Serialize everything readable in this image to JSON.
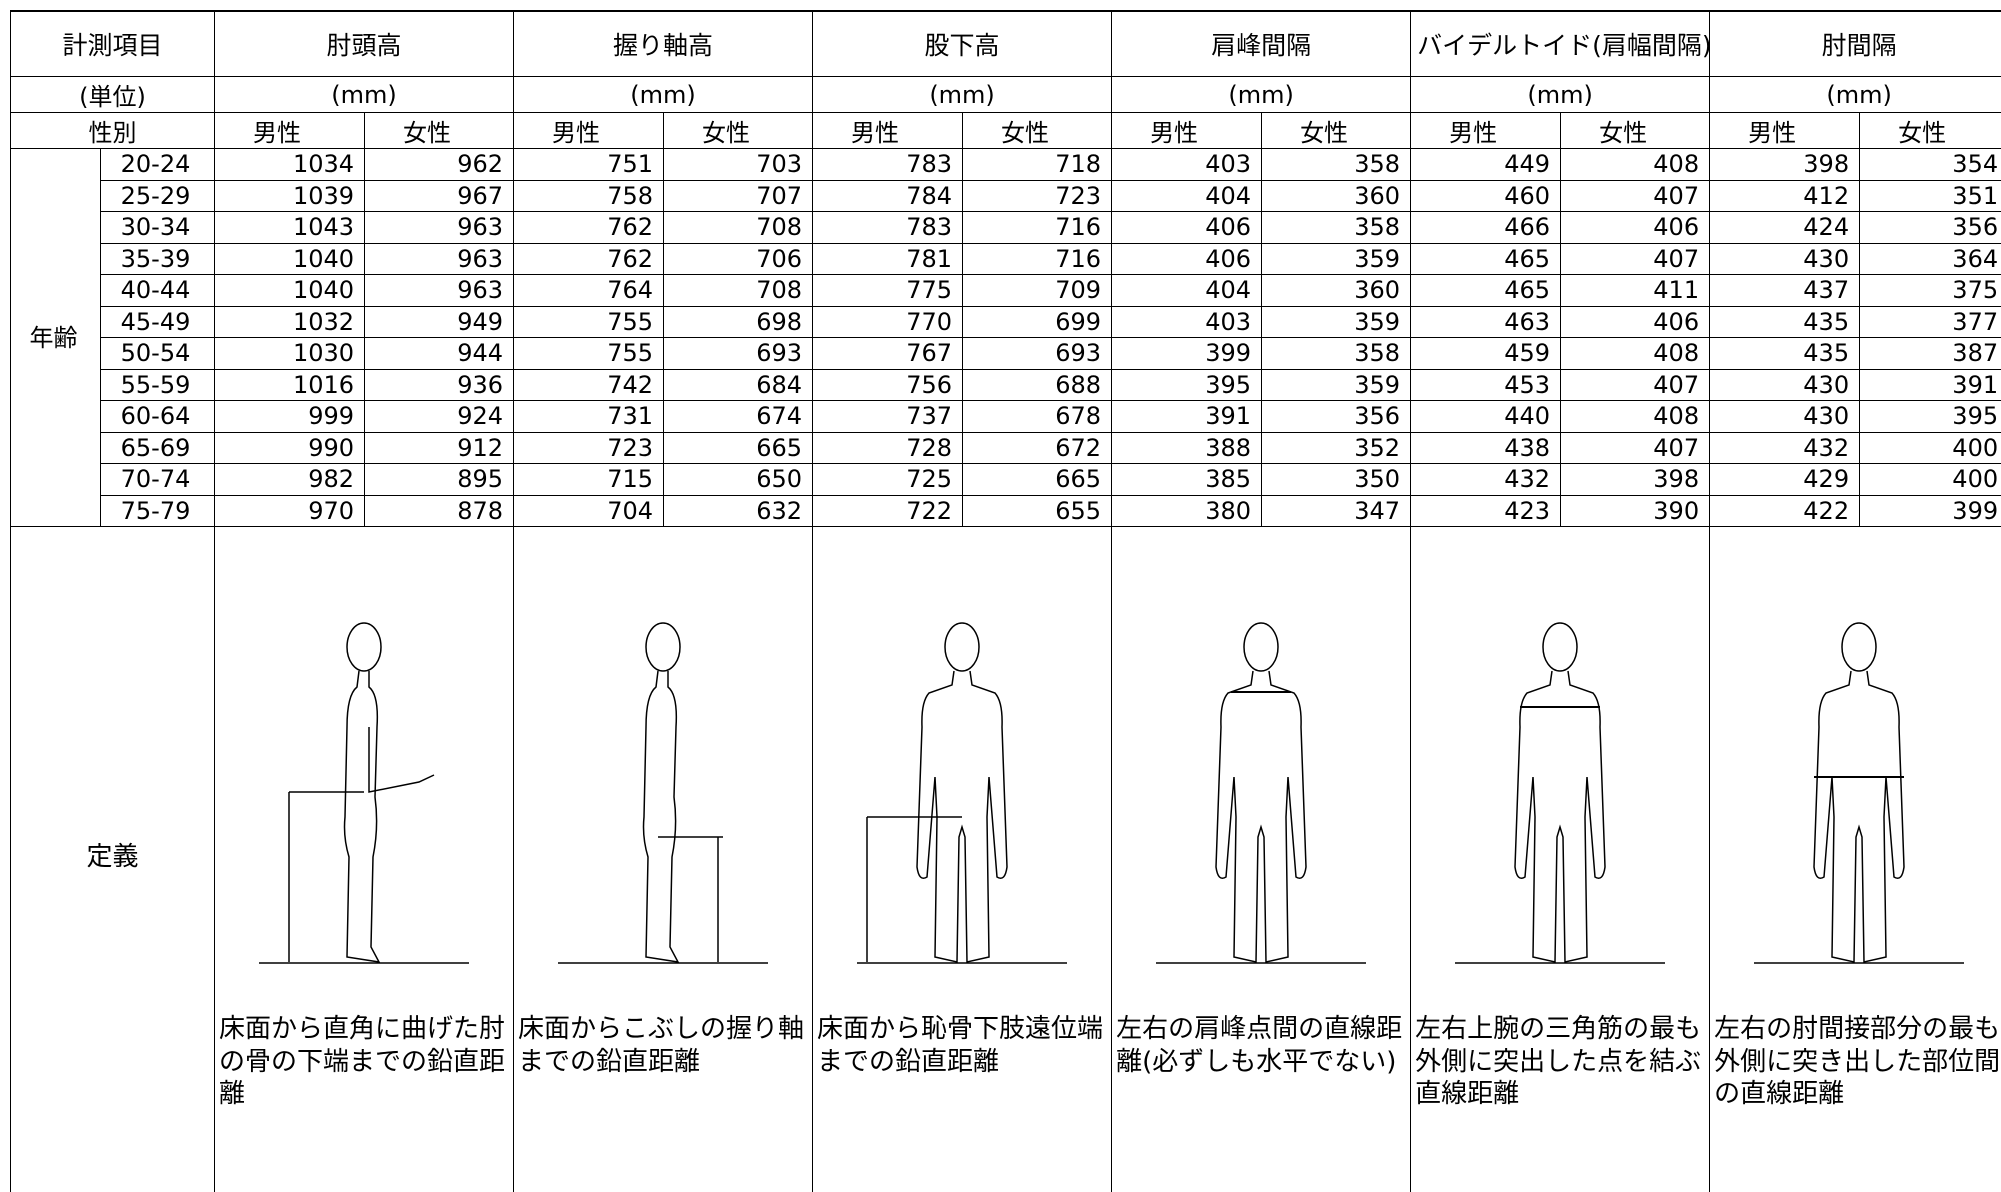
{
  "header": {
    "item_label": "計測項目",
    "unit_label": "(単位)",
    "sex_label": "性別",
    "age_label": "年齢",
    "definition_label": "定義",
    "sexes": [
      "男性",
      "女性"
    ]
  },
  "columns": [
    {
      "name": "肘頭高",
      "unit": "(mm)",
      "definition": "床面から直角に曲げた肘の骨の下端までの鉛直距離"
    },
    {
      "name": "握り軸高",
      "unit": "(mm)",
      "definition": "床面からこぶしの握り軸までの鉛直距離"
    },
    {
      "name": "股下高",
      "unit": "(mm)",
      "definition": "床面から恥骨下肢遠位端までの鉛直距離"
    },
    {
      "name": "肩峰間隔",
      "unit": "(mm)",
      "definition": "左右の肩峰点間の直線距離(必ずしも水平でない)"
    },
    {
      "name": "バイデルトイド(肩幅間隔)",
      "unit": "(mm)",
      "definition": "左右上腕の三角筋の最も外側に突出した点を結ぶ直線距離"
    },
    {
      "name": "肘間隔",
      "unit": "(mm)",
      "definition": "左右の肘間接部分の最も外側に突き出した部位間の直線距離"
    }
  ],
  "age_groups": [
    "20-24",
    "25-29",
    "30-34",
    "35-39",
    "40-44",
    "45-49",
    "50-54",
    "55-59",
    "60-64",
    "65-69",
    "70-74",
    "75-79"
  ],
  "rows": [
    [
      1034,
      962,
      751,
      703,
      783,
      718,
      403,
      358,
      449,
      408,
      398,
      354
    ],
    [
      1039,
      967,
      758,
      707,
      784,
      723,
      404,
      360,
      460,
      407,
      412,
      351
    ],
    [
      1043,
      963,
      762,
      708,
      783,
      716,
      406,
      358,
      466,
      406,
      424,
      356
    ],
    [
      1040,
      963,
      762,
      706,
      781,
      716,
      406,
      359,
      465,
      407,
      430,
      364
    ],
    [
      1040,
      963,
      764,
      708,
      775,
      709,
      404,
      360,
      465,
      411,
      437,
      375
    ],
    [
      1032,
      949,
      755,
      698,
      770,
      699,
      403,
      359,
      463,
      406,
      435,
      377
    ],
    [
      1030,
      944,
      755,
      693,
      767,
      693,
      399,
      358,
      459,
      408,
      435,
      387
    ],
    [
      1016,
      936,
      742,
      684,
      756,
      688,
      395,
      359,
      453,
      407,
      430,
      391
    ],
    [
      999,
      924,
      731,
      674,
      737,
      678,
      391,
      356,
      440,
      408,
      430,
      395
    ],
    [
      990,
      912,
      723,
      665,
      728,
      672,
      388,
      352,
      438,
      407,
      432,
      400
    ],
    [
      982,
      895,
      715,
      650,
      725,
      665,
      385,
      350,
      432,
      398,
      429,
      400
    ],
    [
      970,
      878,
      704,
      632,
      722,
      655,
      380,
      347,
      423,
      390,
      422,
      399
    ]
  ]
}
